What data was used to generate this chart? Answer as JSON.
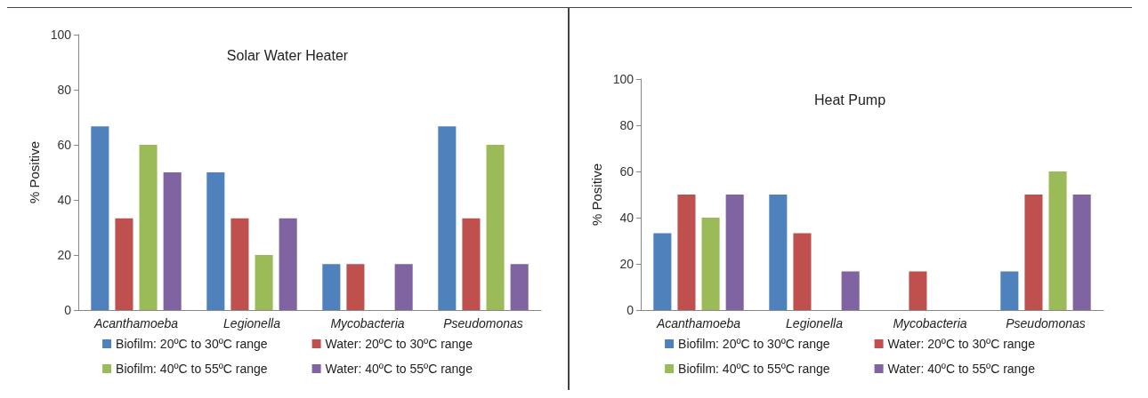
{
  "chart_data": [
    {
      "type": "bar",
      "title": "Solar Water Heater",
      "ylabel": "% Positive",
      "categories": [
        "Acanthamoeba",
        "Legionella",
        "Mycobacteria",
        "Pseudomonas"
      ],
      "ylim": [
        0,
        100
      ],
      "yticks": [
        0,
        20,
        40,
        60,
        80,
        100
      ],
      "grid": false,
      "legend": "bottom",
      "series": [
        {
          "name": "Biofilm: 20ºC to 30ºC range",
          "color": "#4f81bd",
          "values": [
            66.7,
            50,
            16.7,
            66.7
          ]
        },
        {
          "name": "Water: 20ºC to 30ºC range",
          "color": "#c0504d",
          "values": [
            33.3,
            33.3,
            16.7,
            33.3
          ]
        },
        {
          "name": "Biofilm: 40ºC to 55ºC range",
          "color": "#9bbb59",
          "values": [
            60,
            20,
            0,
            60
          ]
        },
        {
          "name": "Water: 40ºC to 55ºC range",
          "color": "#8064a2",
          "values": [
            50,
            33.3,
            16.7,
            16.7
          ]
        }
      ]
    },
    {
      "type": "bar",
      "title": "Heat Pump",
      "ylabel": "% Positive",
      "categories": [
        "Acanthamoeba",
        "Legionella",
        "Mycobacteria",
        "Pseudomonas"
      ],
      "ylim": [
        0,
        100
      ],
      "yticks": [
        0,
        20,
        40,
        60,
        80,
        100
      ],
      "grid": false,
      "legend": "bottom",
      "series": [
        {
          "name": "Biofilm: 20ºC to 30ºC range",
          "color": "#4f81bd",
          "values": [
            33.3,
            50,
            0,
            16.7
          ]
        },
        {
          "name": "Water: 20ºC to 30ºC range",
          "color": "#c0504d",
          "values": [
            50,
            33.3,
            16.7,
            50
          ]
        },
        {
          "name": "Biofilm: 40ºC to 55ºC range",
          "color": "#9bbb59",
          "values": [
            40,
            0,
            0,
            60
          ]
        },
        {
          "name": "Water: 40ºC to 55ºC range",
          "color": "#8064a2",
          "values": [
            50,
            16.7,
            0,
            50
          ]
        }
      ]
    }
  ]
}
